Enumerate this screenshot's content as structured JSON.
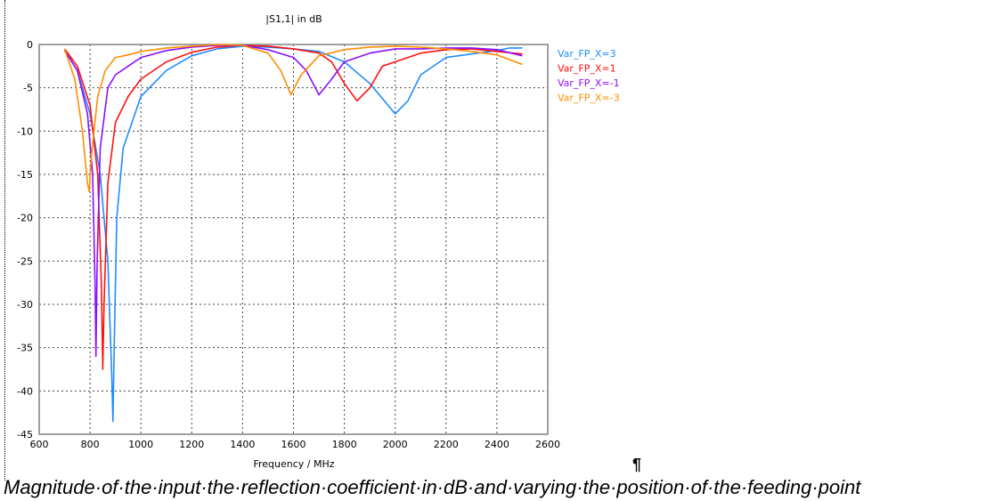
{
  "chart_data": {
    "type": "line",
    "title": "|S1,1| in dB",
    "xlabel": "Frequency / MHz",
    "ylabel": "",
    "xlim": [
      600,
      2600
    ],
    "ylim": [
      -45,
      0
    ],
    "xticks": [
      600,
      800,
      1000,
      1200,
      1400,
      1600,
      1800,
      2000,
      2200,
      2400,
      2600
    ],
    "yticks": [
      0,
      -5,
      -10,
      -15,
      -20,
      -25,
      -30,
      -35,
      -40,
      -45
    ],
    "grid": true,
    "legend_position": "right",
    "series": [
      {
        "name": "Var_FP_X=3",
        "color": "#1e8cff",
        "x": [
          700,
          750,
          800,
          840,
          870,
          885,
          890,
          895,
          905,
          930,
          1000,
          1100,
          1200,
          1300,
          1400,
          1500,
          1600,
          1700,
          1800,
          1900,
          2000,
          2050,
          2100,
          2200,
          2300,
          2400,
          2450,
          2500
        ],
        "y": [
          -0.6,
          -3,
          -8,
          -15,
          -25,
          -38,
          -43.5,
          -35,
          -20,
          -12,
          -6,
          -3,
          -1.3,
          -0.5,
          -0.2,
          -0.3,
          -0.5,
          -0.8,
          -2,
          -4.5,
          -8,
          -6.5,
          -3.5,
          -1.5,
          -1.1,
          -0.7,
          -0.4,
          -0.4
        ]
      },
      {
        "name": "Var_FP_X=1",
        "color": "#ff1010",
        "x": [
          700,
          750,
          800,
          830,
          845,
          850,
          855,
          870,
          900,
          950,
          1000,
          1100,
          1200,
          1300,
          1400,
          1500,
          1600,
          1700,
          1750,
          1800,
          1850,
          1900,
          1950,
          2000,
          2100,
          2200,
          2300,
          2400,
          2500
        ],
        "y": [
          -0.5,
          -2.5,
          -7,
          -15,
          -28,
          -37.5,
          -30,
          -16,
          -9,
          -6,
          -4,
          -2,
          -0.9,
          -0.3,
          -0.1,
          -0.2,
          -0.5,
          -1,
          -2,
          -4.5,
          -6.5,
          -5,
          -2.5,
          -2,
          -1,
          -0.6,
          -0.5,
          -0.8,
          -1.1
        ]
      },
      {
        "name": "Var_FP_X=-1",
        "color": "#8a10ff",
        "x": [
          700,
          750,
          790,
          810,
          820,
          823,
          828,
          840,
          870,
          900,
          950,
          1000,
          1100,
          1200,
          1300,
          1400,
          1500,
          1600,
          1650,
          1700,
          1750,
          1800,
          1900,
          2000,
          2100,
          2200,
          2300,
          2400,
          2500
        ],
        "y": [
          -0.7,
          -3,
          -8,
          -15,
          -28,
          -36,
          -25,
          -12,
          -5,
          -3.5,
          -2.5,
          -1.5,
          -0.7,
          -0.3,
          -0.1,
          -0.1,
          -0.6,
          -1.5,
          -3,
          -5.8,
          -4,
          -2,
          -1,
          -0.5,
          -0.5,
          -0.4,
          -0.4,
          -0.6,
          -1.3
        ]
      },
      {
        "name": "Var_FP_X=-3",
        "color": "#ff8c00",
        "x": [
          700,
          740,
          770,
          790,
          797,
          805,
          830,
          860,
          900,
          950,
          1000,
          1100,
          1200,
          1300,
          1400,
          1500,
          1550,
          1590,
          1630,
          1700,
          1800,
          1900,
          2000,
          2100,
          2200,
          2300,
          2400,
          2500
        ],
        "y": [
          -0.5,
          -4,
          -10,
          -16,
          -17,
          -13,
          -6,
          -3,
          -1.5,
          -1.2,
          -0.8,
          -0.4,
          -0.2,
          0,
          -0.1,
          -1,
          -3,
          -5.8,
          -3.5,
          -1.3,
          -0.6,
          -0.3,
          -0.2,
          -0.3,
          -0.5,
          -0.8,
          -1.2,
          -2.3
        ]
      }
    ]
  },
  "caption": "Magnitude·of·the·input·the·reflection·coefficient·in·dB·and·varying·the·position·of·the·feeding·point",
  "pilcrow": "¶"
}
